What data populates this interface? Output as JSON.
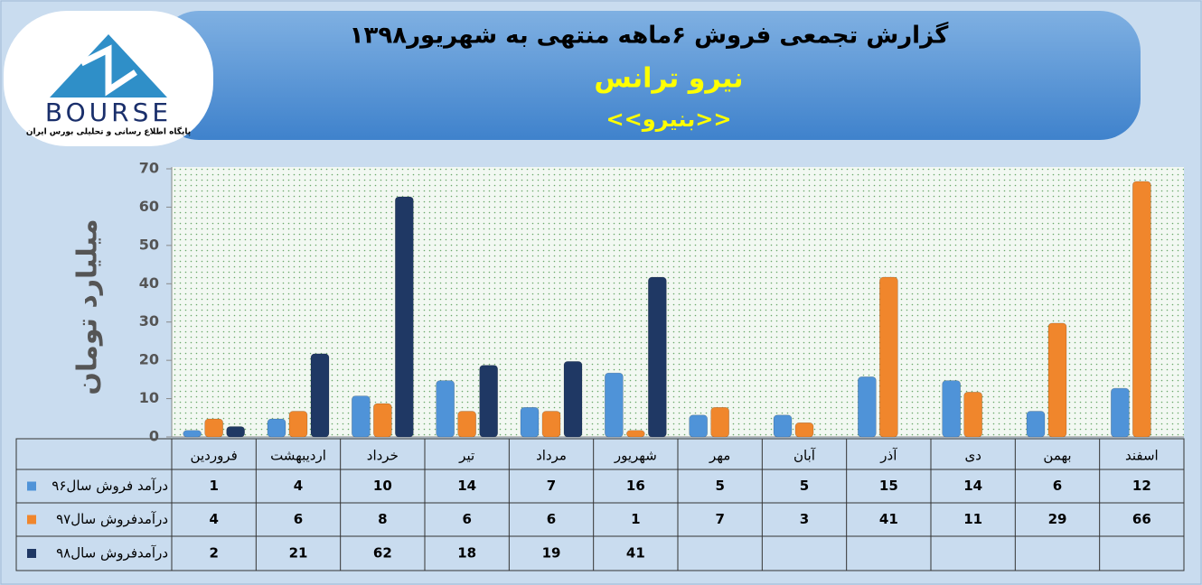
{
  "logo": {
    "name": "BOURSE",
    "tagline": "پایگاه اطلاع رسانی و تحلیلی بورس ایران"
  },
  "chart_data": {
    "type": "bar",
    "title": "گزارش تجمعی فروش ۶ماهه منتهی به شهریور۱۳۹۸",
    "subtitle": "نیرو ترانس",
    "symbol": "<<بنیرو>>",
    "y_label": "میلیارد تومان",
    "categories": [
      "فروردین",
      "اردیبهشت",
      "خرداد",
      "تیر",
      "مرداد",
      "شهریور",
      "مهر",
      "آبان",
      "آذر",
      "دی",
      "بهمن",
      "اسفند"
    ],
    "series": [
      {
        "name": "درآمد فروش سال۹۶",
        "color": "#4f93d8",
        "values": [
          1,
          4,
          10,
          14,
          7,
          16,
          5,
          5,
          15,
          14,
          6,
          12
        ]
      },
      {
        "name": "درآمدفروش سال۹۷",
        "color": "#f0862c",
        "values": [
          4,
          6,
          8,
          6,
          6,
          1,
          7,
          3,
          41,
          11,
          29,
          66
        ]
      },
      {
        "name": "درآمدفروش سال۹۸",
        "color": "#1f3864",
        "values": [
          2,
          21,
          62,
          18,
          19,
          41,
          null,
          null,
          null,
          null,
          null,
          null
        ]
      }
    ],
    "ylim": [
      0,
      70
    ],
    "yticks": [
      0,
      10,
      20,
      30,
      40,
      50,
      60,
      70
    ],
    "grid": false
  }
}
